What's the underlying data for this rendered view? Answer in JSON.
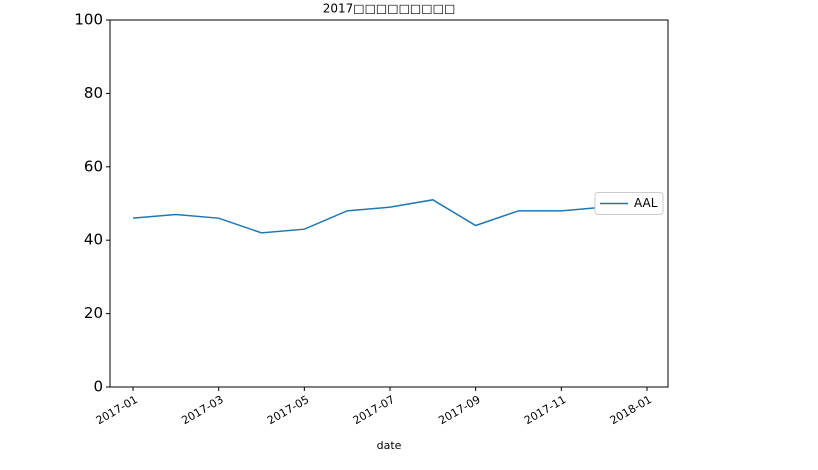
{
  "chart_data": {
    "type": "line",
    "title": "2017□□□□□□□□□",
    "x_label": "date",
    "x": [
      "2017-01",
      "2017-02",
      "2017-03",
      "2017-04",
      "2017-05",
      "2017-06",
      "2017-07",
      "2017-08",
      "2017-09",
      "2017-10",
      "2017-11",
      "2017-12"
    ],
    "series": [
      {
        "name": "AAL",
        "color": "#1f77b4",
        "values": [
          46,
          47,
          46,
          42,
          43,
          48,
          49,
          51,
          44,
          48,
          48,
          49
        ]
      }
    ],
    "xticks": [
      "2017-01",
      "2017-03",
      "2017-05",
      "2017-07",
      "2017-09",
      "2017-11",
      "2018-01"
    ],
    "ylim": [
      0,
      100
    ],
    "yticks": [
      0,
      20,
      40,
      60,
      80,
      100
    ],
    "legend": "center right"
  }
}
